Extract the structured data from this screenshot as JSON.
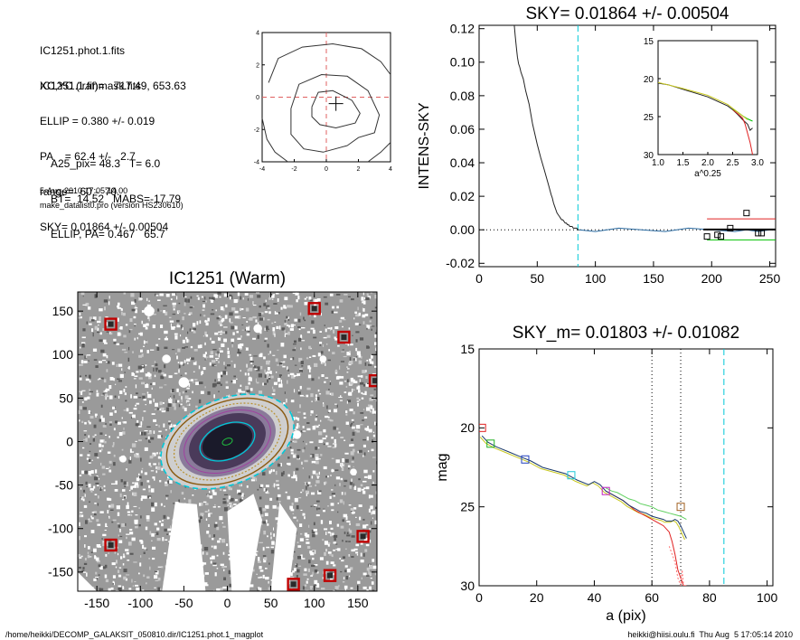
{
  "info": {
    "lines_a": [
      "IC1251.phot.1.fits",
      "IC1251.1.finmask.fits"
    ],
    "lines_b": [
      "XC,YC (iraf)=   717.49, 653.63",
      "ELLIP = 0.380 +/- 0.019",
      "PA    = 62.4 +/-   2.7",
      "range=  60.-  70.",
      "SKY= 0.01864 +/- 0.00504"
    ],
    "lines_c": [
      "A25_pix= 48.3   T= 6.0",
      "BT=  14.52   MABS=-17.79",
      "ELLIP, PA= 0.467   65.7"
    ],
    "date": "5-Aug-2010 17:05:14.00",
    "program": "make_datalist0.pro (version HS230610)"
  },
  "footer": {
    "left": "/home/heikki/DECOMP_GALAKSIT_050810.dir/IC1251.phot.1_magplot",
    "right": "heikki@hiisi.oulu.fi  Thu Aug  5 17:05:14 2010"
  },
  "colors": {
    "ellipse_cyan": "#00c8d8",
    "ellipse_brown": "#8a5a10",
    "ellipse_gold": "#b89030",
    "mask_red": "#c00000",
    "sky_green": "#00c000",
    "sky_red": "#e02020"
  },
  "chart_data": [
    {
      "id": "contour",
      "type": "line",
      "title": "",
      "xlim": [
        -4,
        4
      ],
      "ylim": [
        -4,
        4
      ],
      "xticks": [
        -4,
        -2,
        0,
        2,
        4
      ],
      "yticks": [
        -4,
        -2,
        0,
        2,
        4
      ],
      "center": [
        0.6,
        -0.4
      ],
      "contours": [
        [
          [
            -0.9,
            -0.6
          ],
          [
            -0.5,
            0.3
          ],
          [
            0.4,
            0.4
          ],
          [
            1.6,
            -0.2
          ],
          [
            2.1,
            -1.0
          ],
          [
            1.8,
            -1.6
          ],
          [
            0.6,
            -1.9
          ],
          [
            -0.4,
            -1.7
          ],
          [
            -0.9,
            -1.2
          ],
          [
            -0.9,
            -0.6
          ]
        ],
        [
          [
            -2.2,
            -0.7
          ],
          [
            -1.7,
            0.8
          ],
          [
            -0.3,
            1.4
          ],
          [
            1.3,
            1.3
          ],
          [
            2.6,
            0.4
          ],
          [
            3.3,
            -1.1
          ],
          [
            3.0,
            -2.2
          ],
          [
            2.0,
            -2.5
          ],
          [
            1.3,
            -3.0
          ],
          [
            -0.2,
            -3.4
          ],
          [
            -1.4,
            -3.2
          ],
          [
            -2.2,
            -2.3
          ],
          [
            -2.2,
            -0.7
          ]
        ],
        [
          [
            -3.6,
            0.9
          ],
          [
            -3.0,
            2.4
          ],
          [
            -1.5,
            3.1
          ],
          [
            0.4,
            3.3
          ],
          [
            2.2,
            3.0
          ],
          [
            3.4,
            2.2
          ],
          [
            4.0,
            1.4
          ]
        ],
        [
          [
            -4.0,
            -1.3
          ],
          [
            -3.7,
            -2.6
          ],
          [
            -3.2,
            -3.4
          ],
          [
            -2.4,
            -4.0
          ]
        ],
        [
          [
            2.6,
            -4.0
          ],
          [
            3.4,
            -3.4
          ],
          [
            4.0,
            -2.8
          ]
        ]
      ]
    },
    {
      "id": "sky",
      "type": "line",
      "title": "SKY= 0.01864 +/- 0.00504",
      "xlabel": "",
      "ylabel": "INTENS-SKY",
      "xlim": [
        0,
        255
      ],
      "ylim": [
        -0.022,
        0.122
      ],
      "xticks": [
        0,
        50,
        100,
        150,
        200,
        250
      ],
      "yticks": [
        -0.02,
        0.0,
        0.02,
        0.04,
        0.06,
        0.08,
        0.1,
        0.12
      ],
      "ytick_labels": [
        "-0.02",
        "0.00",
        "0.02",
        "0.04",
        "0.06",
        "0.08",
        "0.10",
        "0.12"
      ],
      "series": [
        {
          "x": [
            30,
            31,
            32,
            33,
            34,
            35,
            36,
            38,
            40,
            43,
            46,
            50,
            53,
            56,
            58,
            60,
            62,
            63,
            64,
            65,
            66,
            67,
            68,
            69,
            70,
            71,
            72,
            73,
            74,
            75,
            76,
            77,
            78,
            79,
            80,
            81,
            82,
            83,
            84,
            85,
            86
          ],
          "y": [
            0.124,
            0.116,
            0.109,
            0.103,
            0.099,
            0.097,
            0.094,
            0.09,
            0.083,
            0.075,
            0.063,
            0.051,
            0.043,
            0.036,
            0.031,
            0.026,
            0.021,
            0.019,
            0.016,
            0.014,
            0.012,
            0.01,
            0.009,
            0.008,
            0.007,
            0.006,
            0.006,
            0.005,
            0.004,
            0.004,
            0.003,
            0.003,
            0.002,
            0.002,
            0.002,
            0.001,
            0.001,
            0.001,
            0.001,
            0.0,
            0.0
          ]
        },
        {
          "x": [
            86,
            100,
            120,
            140,
            160,
            180,
            200,
            220,
            230,
            240,
            250
          ],
          "y": [
            0.0,
            -0.001,
            0.001,
            0.0,
            -0.001,
            0.001,
            0.0,
            -0.001,
            0.0,
            -0.001,
            0.0
          ]
        }
      ],
      "squares": [
        [
          196,
          -0.004
        ],
        [
          205,
          -0.003
        ],
        [
          208,
          -0.004
        ],
        [
          216,
          0.001
        ],
        [
          230,
          0.01
        ],
        [
          240,
          -0.002
        ],
        [
          243,
          -0.002
        ]
      ],
      "sky_dashed_x": 85,
      "inset": {
        "xlabel": "a^0.25",
        "xlim": [
          1.0,
          3.0
        ],
        "ylim": [
          30,
          15
        ],
        "xticks": [
          1.0,
          1.5,
          2.0,
          2.5,
          3.0
        ],
        "yticks": [
          15,
          20,
          25,
          30
        ],
        "xtick_labels": [
          "1.0",
          "1.5",
          "2.0",
          "2.5",
          "3.0"
        ],
        "series": [
          {
            "x": [
              1.0,
              1.2,
              1.5,
              1.8,
              2.0,
              2.2,
              2.4,
              2.5,
              2.6,
              2.7,
              2.8,
              2.85,
              2.9
            ],
            "y": [
              20.6,
              20.8,
              21.4,
              22.0,
              22.4,
              23.0,
              23.6,
              24.1,
              24.7,
              25.4,
              26.0,
              26.8,
              26.5
            ]
          },
          {
            "x": [
              2.5,
              2.6,
              2.7,
              2.75,
              2.8,
              2.85,
              2.9
            ],
            "y": [
              24.1,
              24.6,
              25.2,
              26.0,
              27.2,
              28.4,
              30.0
            ]
          },
          {
            "x": [
              2.5,
              2.6,
              2.7,
              2.8,
              2.9
            ],
            "y": [
              24.0,
              24.4,
              24.9,
              25.3,
              25.6
            ]
          }
        ]
      }
    },
    {
      "id": "image",
      "type": "scatter",
      "title": "IC1251 (Warm)",
      "xlim": [
        -172,
        172
      ],
      "ylim": [
        -172,
        172
      ],
      "xticks": [
        -150,
        -100,
        -50,
        0,
        50,
        100,
        150
      ],
      "yticks": [
        -150,
        -100,
        -50,
        0,
        50,
        100,
        150
      ],
      "center": [
        0,
        0
      ],
      "ellipses": [
        {
          "a": 80,
          "b": 49,
          "pa": 22,
          "role": "outer-dashed"
        },
        {
          "a": 73,
          "b": 45,
          "pa": 22,
          "role": "brown"
        },
        {
          "a": 64,
          "b": 40,
          "pa": 22,
          "role": "gold"
        },
        {
          "a": 33,
          "b": 20,
          "pa": 22,
          "role": "inner"
        }
      ],
      "masks": [
        [
          -134,
          135
        ],
        [
          100,
          153
        ],
        [
          134,
          120
        ],
        [
          170,
          70
        ],
        [
          -134,
          -119
        ],
        [
          156,
          -109
        ],
        [
          76,
          -164
        ],
        [
          118,
          -154
        ]
      ]
    },
    {
      "id": "mag",
      "type": "line",
      "title": "SKY_m=  0.01803 +/- 0.01082",
      "xlabel": "a (pix)",
      "ylabel": "mag",
      "xlim": [
        0,
        102
      ],
      "ylim": [
        30,
        15
      ],
      "xticks": [
        0,
        20,
        40,
        60,
        80,
        100
      ],
      "yticks": [
        15,
        20,
        25,
        30
      ],
      "series": [
        {
          "x": [
            1,
            3,
            6,
            10,
            14,
            18,
            22,
            26,
            30,
            34,
            38,
            40,
            42,
            44,
            46,
            48,
            50,
            52,
            54,
            56,
            58,
            60,
            62,
            64,
            65,
            66,
            67,
            68,
            69,
            70,
            71,
            72
          ],
          "y": [
            20.5,
            20.9,
            21.2,
            21.5,
            21.8,
            22.1,
            22.5,
            22.7,
            22.9,
            23.3,
            23.6,
            23.4,
            23.6,
            24.0,
            24.2,
            24.4,
            24.6,
            24.9,
            25.1,
            25.3,
            25.4,
            25.6,
            25.7,
            25.8,
            25.9,
            25.9,
            25.9,
            25.8,
            25.9,
            26.2,
            26.6,
            27.0
          ]
        },
        {
          "x": [
            44,
            46,
            48,
            50,
            52,
            54,
            56,
            58,
            60,
            62,
            64,
            65,
            66,
            67,
            68,
            69,
            70,
            71,
            72
          ],
          "y": [
            24.0,
            24.2,
            24.4,
            24.6,
            24.9,
            25.2,
            25.4,
            25.6,
            25.8,
            26.0,
            26.2,
            26.4,
            26.6,
            27.2,
            28.0,
            29.0,
            29.5,
            30.0,
            30.0
          ]
        },
        {
          "x": [
            44,
            46,
            48,
            50,
            52,
            54,
            56,
            58,
            60,
            62,
            64,
            66,
            68,
            70,
            72
          ],
          "y": [
            23.8,
            24.0,
            24.1,
            24.3,
            24.5,
            24.6,
            24.8,
            24.9,
            25.0,
            25.2,
            25.3,
            25.4,
            25.5,
            25.6,
            25.8
          ]
        }
      ],
      "squares": [
        [
          1,
          20.0,
          "red"
        ],
        [
          4,
          21.0,
          "green"
        ],
        [
          16,
          22.0,
          "blue"
        ],
        [
          32,
          23.0,
          "cyan"
        ],
        [
          44,
          24.0,
          "magenta"
        ],
        [
          70,
          25.0,
          "brown"
        ]
      ],
      "dotted_x": [
        60,
        70
      ],
      "sky_dashed_x": 85
    }
  ]
}
